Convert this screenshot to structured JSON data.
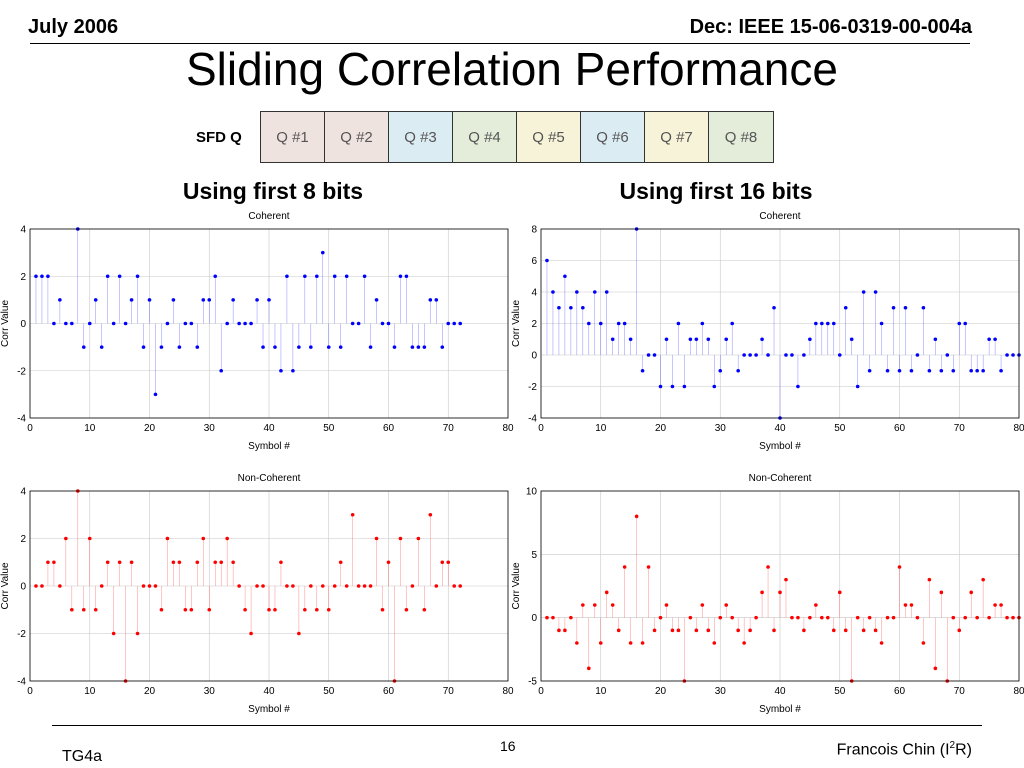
{
  "header": {
    "left": "July 2006",
    "right": "Dec: IEEE 15-06-0319-00-004a"
  },
  "title": "Sliding Correlation Performance",
  "sfd": {
    "label": "SFD Q",
    "boxes": [
      {
        "label": "Q #1",
        "color": "#efe3e0"
      },
      {
        "label": "Q #2",
        "color": "#efe3e0"
      },
      {
        "label": "Q #3",
        "color": "#dcecf3"
      },
      {
        "label": "Q #4",
        "color": "#e3edda"
      },
      {
        "label": "Q #5",
        "color": "#f6f3d9"
      },
      {
        "label": "Q #6",
        "color": "#dcecf3"
      },
      {
        "label": "Q #7",
        "color": "#f6f3d9"
      },
      {
        "label": "Q #8",
        "color": "#e3edda"
      }
    ]
  },
  "columns": {
    "left": "Using first 8 bits",
    "right": "Using first 16 bits"
  },
  "footer": {
    "left": "TG4a",
    "center": "16",
    "right_name": "Francois Chin (I",
    "right_sup": "2",
    "right_end": "R)"
  },
  "chart_data": [
    {
      "type": "scatter",
      "style": "stem",
      "title": "Coherent",
      "xlabel": "Symbol #",
      "ylabel": "Corr Value",
      "xlim": [
        0,
        80
      ],
      "ylim": [
        -4,
        4
      ],
      "xticks": [
        0,
        10,
        20,
        30,
        40,
        50,
        60,
        70,
        80
      ],
      "yticks": [
        -4,
        -2,
        0,
        2,
        4
      ],
      "color": "#0000ff",
      "series": [
        {
          "x": [
            1,
            2,
            3,
            4,
            5,
            6,
            7,
            8,
            9,
            10,
            11,
            12,
            13,
            14,
            15,
            16,
            17,
            18,
            19,
            20,
            21,
            22,
            23,
            24,
            25,
            26,
            27,
            28,
            29,
            30,
            31,
            32,
            33,
            34,
            35,
            36,
            37,
            38,
            39,
            40,
            41,
            42,
            43,
            44,
            45,
            46,
            47,
            48,
            49,
            50,
            51,
            52,
            53,
            54,
            55,
            56,
            57,
            58,
            59,
            60,
            61,
            62,
            63,
            64,
            65,
            66,
            67,
            68,
            69,
            70,
            71,
            72
          ],
          "y": [
            2,
            2,
            2,
            0,
            1,
            0,
            0,
            4,
            -1,
            0,
            1,
            -1,
            2,
            0,
            2,
            0,
            1,
            2,
            -1,
            1,
            -3,
            -1,
            0,
            1,
            -1,
            0,
            0,
            -1,
            1,
            1,
            2,
            -2,
            0,
            1,
            0,
            0,
            0,
            1,
            -1,
            1,
            -1,
            -2,
            2,
            -2,
            -1,
            2,
            -1,
            2,
            3,
            -1,
            2,
            -1,
            2,
            0,
            0,
            2,
            -1,
            1,
            0,
            0,
            -1,
            2,
            2,
            -1,
            -1,
            -1,
            1,
            1,
            -1,
            0,
            0,
            0
          ]
        }
      ]
    },
    {
      "type": "scatter",
      "style": "stem",
      "title": "Coherent",
      "xlabel": "Symbol #",
      "ylabel": "Corr Value",
      "xlim": [
        0,
        80
      ],
      "ylim": [
        -4,
        8
      ],
      "xticks": [
        0,
        10,
        20,
        30,
        40,
        50,
        60,
        70,
        80
      ],
      "yticks": [
        -4,
        -2,
        0,
        2,
        4,
        6,
        8
      ],
      "color": "#0000ff",
      "series": [
        {
          "x": [
            1,
            2,
            3,
            4,
            5,
            6,
            7,
            8,
            9,
            10,
            11,
            12,
            13,
            14,
            15,
            16,
            17,
            18,
            19,
            20,
            21,
            22,
            23,
            24,
            25,
            26,
            27,
            28,
            29,
            30,
            31,
            32,
            33,
            34,
            35,
            36,
            37,
            38,
            39,
            40,
            41,
            42,
            43,
            44,
            45,
            46,
            47,
            48,
            49,
            50,
            51,
            52,
            53,
            54,
            55,
            56,
            57,
            58,
            59,
            60,
            61,
            62,
            63,
            64,
            65,
            66,
            67,
            68,
            69,
            70,
            71,
            72,
            73,
            74,
            75,
            76,
            77,
            78,
            79,
            80
          ],
          "y": [
            6,
            4,
            3,
            5,
            3,
            4,
            3,
            2,
            4,
            2,
            4,
            1,
            2,
            2,
            1,
            8,
            -1,
            0,
            0,
            -2,
            1,
            -2,
            2,
            -2,
            1,
            1,
            2,
            1,
            -2,
            -1,
            1,
            2,
            -1,
            0,
            0,
            0,
            1,
            0,
            3,
            -4,
            0,
            0,
            -2,
            0,
            1,
            2,
            2,
            2,
            2,
            0,
            3,
            1,
            -2,
            4,
            -1,
            4,
            2,
            -1,
            3,
            -1,
            3,
            -1,
            0,
            3,
            -1,
            1,
            -1,
            0,
            -1,
            2,
            2,
            -1,
            -1,
            -1,
            1,
            1,
            -1,
            0,
            0,
            0
          ]
        }
      ]
    },
    {
      "type": "scatter",
      "style": "stem",
      "title": "Non-Coherent",
      "xlabel": "Symbol #",
      "ylabel": "Corr Value",
      "xlim": [
        0,
        80
      ],
      "ylim": [
        -4,
        4
      ],
      "xticks": [
        0,
        10,
        20,
        30,
        40,
        50,
        60,
        70,
        80
      ],
      "yticks": [
        -4,
        -2,
        0,
        2,
        4
      ],
      "color": "#ff0000",
      "series": [
        {
          "x": [
            1,
            2,
            3,
            4,
            5,
            6,
            7,
            8,
            9,
            10,
            11,
            12,
            13,
            14,
            15,
            16,
            17,
            18,
            19,
            20,
            21,
            22,
            23,
            24,
            25,
            26,
            27,
            28,
            29,
            30,
            31,
            32,
            33,
            34,
            35,
            36,
            37,
            38,
            39,
            40,
            41,
            42,
            43,
            44,
            45,
            46,
            47,
            48,
            49,
            50,
            51,
            52,
            53,
            54,
            55,
            56,
            57,
            58,
            59,
            60,
            61,
            62,
            63,
            64,
            65,
            66,
            67,
            68,
            69,
            70,
            71,
            72
          ],
          "y": [
            0,
            0,
            1,
            1,
            0,
            2,
            -1,
            4,
            -1,
            2,
            -1,
            0,
            1,
            -2,
            1,
            -4,
            1,
            -2,
            0,
            0,
            0,
            -1,
            2,
            1,
            1,
            -1,
            -1,
            1,
            2,
            -1,
            1,
            1,
            2,
            1,
            0,
            -1,
            -2,
            0,
            0,
            -1,
            -1,
            1,
            0,
            0,
            -2,
            -1,
            0,
            -1,
            0,
            -1,
            0,
            1,
            0,
            3,
            0,
            0,
            0,
            2,
            -1,
            1,
            -4,
            2,
            -1,
            0,
            2,
            -1,
            3,
            0,
            1,
            1,
            0,
            0
          ]
        }
      ]
    },
    {
      "type": "scatter",
      "style": "stem",
      "title": "Non-Coherent",
      "xlabel": "Symbol #",
      "ylabel": "Corr Value",
      "xlim": [
        0,
        80
      ],
      "ylim": [
        -5,
        10
      ],
      "xticks": [
        0,
        10,
        20,
        30,
        40,
        50,
        60,
        70,
        80
      ],
      "yticks": [
        -5,
        0,
        5,
        10
      ],
      "color": "#ff0000",
      "series": [
        {
          "x": [
            1,
            2,
            3,
            4,
            5,
            6,
            7,
            8,
            9,
            10,
            11,
            12,
            13,
            14,
            15,
            16,
            17,
            18,
            19,
            20,
            21,
            22,
            23,
            24,
            25,
            26,
            27,
            28,
            29,
            30,
            31,
            32,
            33,
            34,
            35,
            36,
            37,
            38,
            39,
            40,
            41,
            42,
            43,
            44,
            45,
            46,
            47,
            48,
            49,
            50,
            51,
            52,
            53,
            54,
            55,
            56,
            57,
            58,
            59,
            60,
            61,
            62,
            63,
            64,
            65,
            66,
            67,
            68,
            69,
            70,
            71,
            72,
            73,
            74,
            75,
            76,
            77,
            78,
            79,
            80
          ],
          "y": [
            0,
            0,
            -1,
            -1,
            0,
            -2,
            1,
            -4,
            1,
            -2,
            2,
            1,
            -1,
            4,
            -2,
            8,
            -2,
            4,
            -1,
            0,
            1,
            -1,
            -1,
            -5,
            0,
            -1,
            1,
            -1,
            -2,
            0,
            1,
            0,
            -1,
            -2,
            -1,
            0,
            2,
            4,
            -1,
            2,
            3,
            0,
            0,
            -1,
            0,
            1,
            0,
            0,
            -1,
            2,
            -1,
            -5,
            0,
            -1,
            0,
            -1,
            -2,
            0,
            0,
            4,
            1,
            1,
            0,
            -2,
            3,
            -4,
            2,
            -5,
            0,
            -1,
            0,
            2,
            0,
            3,
            0,
            1,
            1,
            0,
            0,
            0
          ]
        }
      ]
    }
  ]
}
